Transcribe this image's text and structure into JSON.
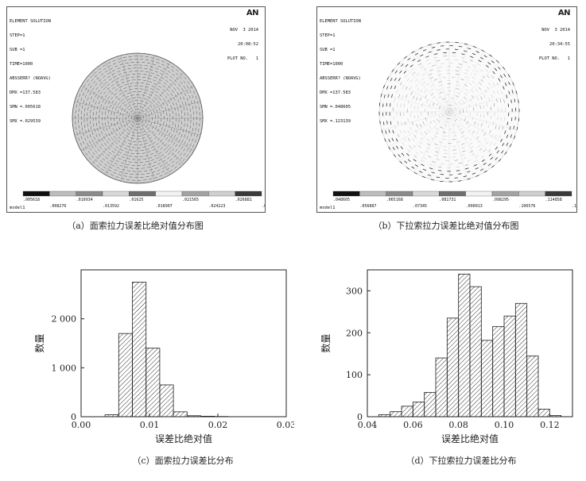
{
  "panels": [
    {
      "id": "a",
      "header_lines": [
        "ELEMENT SOLUTION",
        "STEP=1",
        "SUB =1",
        "TIME=1000",
        "ABSSERR? (NOAVG)",
        "DMX =137.583",
        "SMN =.005618",
        "SMX =.029539"
      ],
      "brand": "AN",
      "date": "NOV  3 2014",
      "time": "20:08:52",
      "plot_no": "PLOT NO.   1",
      "footer": "model1",
      "legend_upper": [
        ".005618",
        ".010934",
        ".01625",
        ".021565",
        ".026881"
      ],
      "legend_lower": [
        ".008276",
        ".013592",
        ".018907",
        ".024223",
        ".029539"
      ],
      "legend_colors": [
        "#111111",
        "#bdbdbd",
        "#8a8a8a",
        "#d9d9d9",
        "#6e6e6e",
        "#f2f2f2",
        "#a3a3a3",
        "#cfcfcf",
        "#3a3a3a"
      ],
      "caption": "（a）面索拉力误差比绝对值分布图"
    },
    {
      "id": "b",
      "header_lines": [
        "ELEMENT SOLUTION",
        "STEP=1",
        "SUB =1",
        "TIME=1000",
        "ABSSERR? (NOAVG)",
        "DMX =137.583",
        "SMN =.048605",
        "SMX =.123139"
      ],
      "brand": "AN",
      "date": "NOV  3 2014",
      "time": "20:34:55",
      "plot_no": "PLOT NO.   1",
      "footer": "model1",
      "legend_upper": [
        ".048605",
        ".065168",
        ".081731",
        ".098295",
        ".114858"
      ],
      "legend_lower": [
        ".056887",
        ".07345",
        ".090013",
        ".106576",
        ".123139"
      ],
      "legend_colors": [
        "#111111",
        "#bdbdbd",
        "#8a8a8a",
        "#d9d9d9",
        "#6e6e6e",
        "#f2f2f2",
        "#a3a3a3",
        "#cfcfcf",
        "#3a3a3a"
      ],
      "caption": "（b）下拉索拉力误差比绝对值分布图"
    }
  ],
  "captions": {
    "c": "（c）面索拉力误差比分布",
    "d": "（d）下拉索拉力误差比分布"
  },
  "chart_data": [
    {
      "type": "bar",
      "xlabel": "误差比绝对值",
      "ylabel": "数量",
      "xlim": [
        0,
        0.03
      ],
      "ylim": [
        0,
        3000
      ],
      "xticks": [
        0.0,
        0.01,
        0.02,
        0.03
      ],
      "xtick_labels": [
        "0.00",
        "0.01",
        "0.02",
        "0.03"
      ],
      "yticks": [
        0,
        1000,
        2000
      ],
      "ytick_labels": [
        "0",
        "1 000",
        "2 000"
      ],
      "bin_edges": [
        0.0035,
        0.0055,
        0.0075,
        0.0095,
        0.0115,
        0.0135,
        0.0155,
        0.0175,
        0.0195,
        0.0215
      ],
      "values": [
        40,
        1700,
        2750,
        1400,
        650,
        100,
        20,
        10,
        5
      ],
      "hatch": true
    },
    {
      "type": "bar",
      "xlabel": "误差比绝对值",
      "ylabel": "数量",
      "xlim": [
        0.04,
        0.13
      ],
      "ylim": [
        0,
        350
      ],
      "xticks": [
        0.04,
        0.06,
        0.08,
        0.1,
        0.12
      ],
      "xtick_labels": [
        "0.04",
        "0.06",
        "0.08",
        "0.10",
        "0.12"
      ],
      "yticks": [
        0,
        100,
        200,
        300
      ],
      "ytick_labels": [
        "0",
        "100",
        "200",
        "300"
      ],
      "bin_edges": [
        0.045,
        0.05,
        0.055,
        0.06,
        0.065,
        0.07,
        0.075,
        0.08,
        0.085,
        0.09,
        0.095,
        0.1,
        0.105,
        0.11,
        0.115,
        0.12,
        0.125
      ],
      "values": [
        5,
        12,
        25,
        35,
        58,
        140,
        235,
        340,
        310,
        182,
        215,
        240,
        270,
        145,
        18,
        3
      ],
      "hatch": true
    }
  ]
}
